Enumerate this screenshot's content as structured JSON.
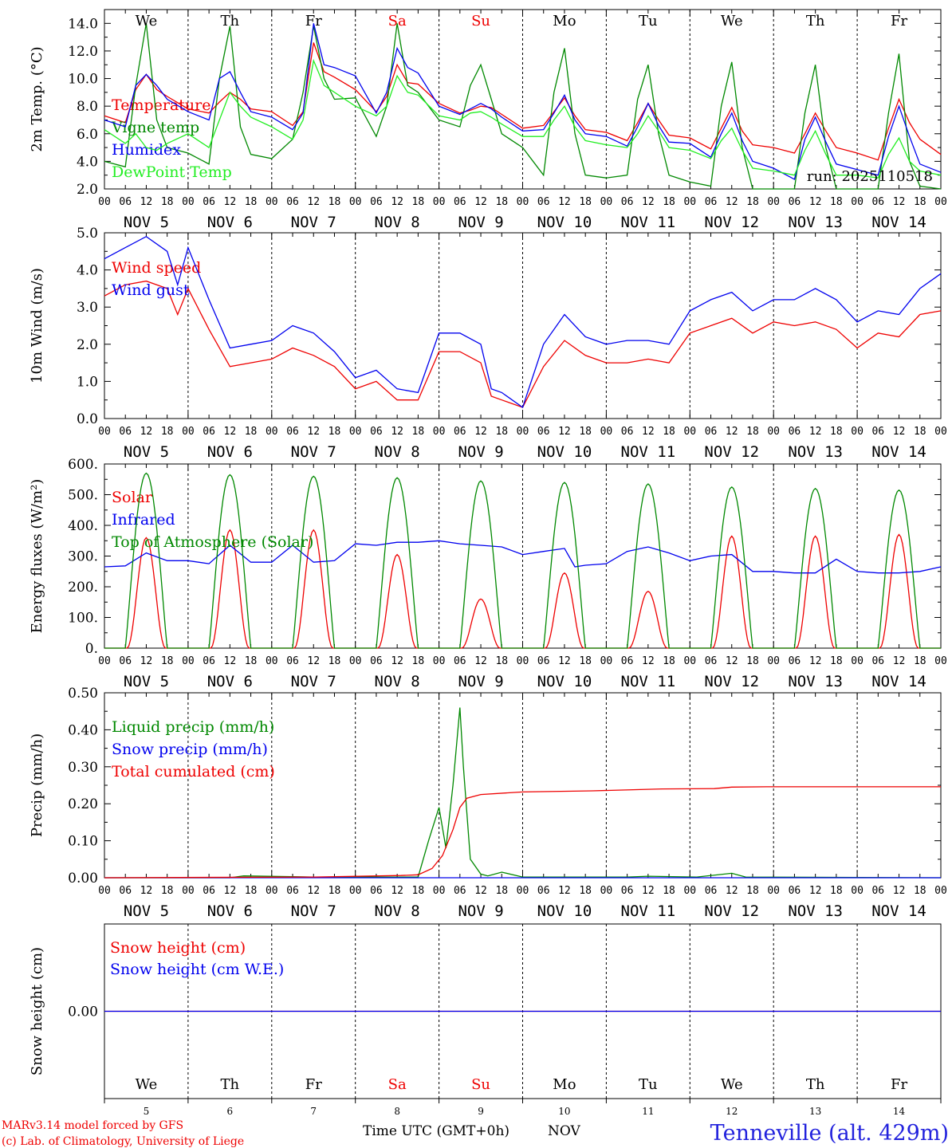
{
  "footer": {
    "model_line": "MARv3.14 model forced by GFS",
    "copyright_line": "(c) Lab. of Climatology, University of Liege",
    "xaxis_title": "Time UTC (GMT+0h)",
    "xaxis_month": "NOV",
    "station": "Tenneville (alt. 429m)"
  },
  "colors": {
    "red": "#ee0000",
    "blue": "#0000ee",
    "green": "#008800",
    "lightgreen": "#22ee22"
  },
  "days": {
    "weekdays": [
      "We",
      "Th",
      "Fr",
      "Sa",
      "Su",
      "Mo",
      "Tu",
      "We",
      "Th",
      "Fr"
    ],
    "weekend_flags": [
      false,
      false,
      false,
      true,
      true,
      false,
      false,
      false,
      false,
      false
    ],
    "dates": [
      "NOV  5",
      "NOV  6",
      "NOV  7",
      "NOV  8",
      "NOV  9",
      "NOV 10",
      "NOV 11",
      "NOV 12",
      "NOV 13",
      "NOV 14"
    ],
    "day_numbers": [
      "5",
      "6",
      "7",
      "8",
      "9",
      "10",
      "11",
      "12",
      "13",
      "14"
    ],
    "hour_ticks": [
      "00",
      "06",
      "12",
      "18"
    ],
    "final_tick": "00"
  },
  "chart_data": [
    {
      "type": "line",
      "id": "temp",
      "ylabel": "2m Temp. (°C)",
      "ylim": [
        2,
        15
      ],
      "yticks": [
        "2.0",
        "4.0",
        "6.0",
        "8.0",
        "10.0",
        "12.0",
        "14.0"
      ],
      "annotation": "run: 2025110518",
      "x_unit": "hours since 2025-11-05 00 UTC",
      "series": [
        {
          "name": "Temperature",
          "color": "red",
          "x": [
            0,
            6,
            9,
            12,
            15,
            18,
            24,
            30,
            33,
            36,
            39,
            42,
            48,
            54,
            57,
            60,
            63,
            66,
            72,
            78,
            81,
            84,
            87,
            90,
            96,
            102,
            105,
            108,
            111,
            114,
            120,
            126,
            129,
            132,
            135,
            138,
            144,
            150,
            153,
            156,
            159,
            162,
            168,
            174,
            177,
            180,
            183,
            186,
            192,
            198,
            201,
            204,
            207,
            210,
            216,
            222,
            225,
            228,
            231,
            234,
            240
          ],
          "values": [
            7.3,
            6.8,
            9.2,
            10.3,
            9.2,
            8.7,
            7.8,
            7.5,
            8.3,
            9.0,
            8.5,
            7.8,
            7.6,
            6.6,
            7.6,
            12.6,
            10.5,
            10.1,
            9.2,
            7.6,
            8.7,
            11.0,
            9.7,
            9.6,
            8.2,
            7.5,
            7.7,
            8.0,
            7.9,
            7.4,
            6.4,
            6.6,
            7.6,
            8.6,
            7.3,
            6.3,
            6.1,
            5.5,
            6.8,
            8.2,
            7.0,
            5.9,
            5.7,
            4.9,
            6.4,
            7.9,
            6.2,
            5.2,
            5.0,
            4.6,
            6.0,
            7.5,
            6.2,
            5.0,
            4.6,
            4.1,
            6.4,
            8.5,
            6.8,
            5.6,
            4.5
          ]
        },
        {
          "name": "Vigne temp",
          "color": "green",
          "x": [
            0,
            6,
            9,
            12,
            15,
            18,
            24,
            30,
            33,
            36,
            39,
            42,
            48,
            54,
            57,
            60,
            63,
            66,
            72,
            78,
            81,
            84,
            87,
            90,
            96,
            102,
            105,
            108,
            111,
            114,
            120,
            126,
            129,
            132,
            135,
            138,
            144,
            150,
            153,
            156,
            159,
            162,
            168,
            174,
            177,
            180,
            183,
            186,
            192,
            198,
            201,
            204,
            207,
            210,
            216,
            222,
            225,
            228,
            231,
            234,
            240
          ],
          "values": [
            4.0,
            3.6,
            9.5,
            14.0,
            7.0,
            5.0,
            4.6,
            3.8,
            10.0,
            13.8,
            6.5,
            4.5,
            4.2,
            5.6,
            9.0,
            13.8,
            10.0,
            8.5,
            8.6,
            5.8,
            8.0,
            14.0,
            9.5,
            9.0,
            7.0,
            6.5,
            9.5,
            11.0,
            8.5,
            6.0,
            5.0,
            3.0,
            9.0,
            12.2,
            6.0,
            3.0,
            2.8,
            3.0,
            8.5,
            11.0,
            6.0,
            3.0,
            2.5,
            2.2,
            8.0,
            11.2,
            5.0,
            1.8,
            1.8,
            2.0,
            7.5,
            11.0,
            5.0,
            2.0,
            1.8,
            1.8,
            7.5,
            11.8,
            4.0,
            2.2,
            2.0
          ]
        },
        {
          "name": "Humidex",
          "color": "blue",
          "x": [
            0,
            6,
            9,
            12,
            15,
            18,
            24,
            30,
            33,
            36,
            39,
            42,
            48,
            54,
            57,
            60,
            63,
            66,
            72,
            78,
            81,
            84,
            87,
            90,
            96,
            102,
            105,
            108,
            111,
            114,
            120,
            126,
            129,
            132,
            135,
            138,
            144,
            150,
            153,
            156,
            159,
            162,
            168,
            174,
            177,
            180,
            183,
            186,
            192,
            198,
            201,
            204,
            207,
            210,
            216,
            222,
            225,
            228,
            231,
            234,
            240
          ],
          "values": [
            7.0,
            6.5,
            9.5,
            10.3,
            9.5,
            8.5,
            7.6,
            7.0,
            10.0,
            10.5,
            9.0,
            7.6,
            7.2,
            6.3,
            7.5,
            14.0,
            11.0,
            10.8,
            10.2,
            7.5,
            9.0,
            12.2,
            10.8,
            10.4,
            8.0,
            7.4,
            7.8,
            8.2,
            7.8,
            7.2,
            6.2,
            6.3,
            7.5,
            8.8,
            7.0,
            6.0,
            5.8,
            5.1,
            6.5,
            8.2,
            6.6,
            5.4,
            5.3,
            4.3,
            6.0,
            7.5,
            5.5,
            4.0,
            3.5,
            2.7,
            5.6,
            7.2,
            5.4,
            3.8,
            3.4,
            3.0,
            5.8,
            8.0,
            5.8,
            3.8,
            3.2
          ]
        },
        {
          "name": "DewPoint Temp",
          "color": "lightgreen",
          "x": [
            0,
            6,
            9,
            12,
            15,
            18,
            24,
            30,
            33,
            36,
            39,
            42,
            48,
            54,
            57,
            60,
            63,
            66,
            72,
            78,
            81,
            84,
            87,
            90,
            96,
            102,
            105,
            108,
            111,
            114,
            120,
            126,
            129,
            132,
            135,
            138,
            144,
            150,
            153,
            156,
            159,
            162,
            168,
            174,
            177,
            180,
            183,
            186,
            192,
            198,
            201,
            204,
            207,
            210,
            216,
            222,
            225,
            228,
            231,
            234,
            240
          ],
          "values": [
            6.3,
            5.3,
            6.0,
            5.0,
            4.8,
            5.3,
            6.0,
            5.0,
            7.0,
            9.0,
            8.0,
            7.2,
            6.5,
            5.6,
            7.0,
            11.3,
            9.5,
            9.0,
            8.0,
            7.3,
            8.0,
            10.2,
            9.0,
            8.8,
            7.3,
            7.0,
            7.5,
            7.6,
            7.2,
            6.7,
            5.8,
            5.8,
            7.0,
            8.0,
            6.5,
            5.5,
            5.2,
            5.0,
            6.0,
            7.3,
            6.2,
            5.0,
            4.8,
            4.2,
            5.5,
            6.4,
            4.8,
            3.5,
            3.3,
            3.0,
            4.8,
            6.2,
            4.5,
            3.0,
            3.0,
            2.8,
            4.5,
            5.7,
            4.0,
            3.3,
            3.0
          ]
        }
      ]
    },
    {
      "type": "line",
      "id": "wind",
      "ylabel": "10m Wind (m/s)",
      "ylim": [
        0,
        5
      ],
      "yticks": [
        "0.0",
        "1.0",
        "2.0",
        "3.0",
        "4.0",
        "5.0"
      ],
      "x_unit": "hours since 2025-11-05 00 UTC",
      "series": [
        {
          "name": "Wind speed",
          "color": "red",
          "x": [
            0,
            6,
            12,
            18,
            21,
            24,
            30,
            36,
            42,
            48,
            54,
            60,
            66,
            72,
            78,
            84,
            90,
            96,
            102,
            108,
            111,
            114,
            120,
            126,
            132,
            138,
            144,
            150,
            156,
            162,
            168,
            174,
            180,
            186,
            192,
            198,
            204,
            210,
            216,
            222,
            228,
            234,
            240
          ],
          "values": [
            3.3,
            3.6,
            3.7,
            3.5,
            2.8,
            3.5,
            2.4,
            1.4,
            1.5,
            1.6,
            1.9,
            1.7,
            1.4,
            0.8,
            1.0,
            0.5,
            0.5,
            1.8,
            1.8,
            1.5,
            0.6,
            0.5,
            0.3,
            1.4,
            2.1,
            1.7,
            1.5,
            1.5,
            1.6,
            1.5,
            2.3,
            2.5,
            2.7,
            2.3,
            2.6,
            2.5,
            2.6,
            2.4,
            1.9,
            2.3,
            2.2,
            2.8,
            2.9
          ]
        },
        {
          "name": "Wind gust",
          "color": "blue",
          "x": [
            0,
            6,
            12,
            18,
            21,
            24,
            30,
            36,
            42,
            48,
            54,
            60,
            66,
            72,
            78,
            84,
            90,
            96,
            102,
            108,
            111,
            114,
            120,
            126,
            132,
            138,
            144,
            150,
            156,
            162,
            168,
            174,
            180,
            186,
            192,
            198,
            204,
            210,
            216,
            222,
            228,
            234,
            240
          ],
          "values": [
            4.3,
            4.6,
            4.9,
            4.5,
            3.6,
            4.6,
            3.2,
            1.9,
            2.0,
            2.1,
            2.5,
            2.3,
            1.8,
            1.1,
            1.3,
            0.8,
            0.7,
            2.3,
            2.3,
            2.0,
            0.8,
            0.7,
            0.3,
            2.0,
            2.8,
            2.2,
            2.0,
            2.1,
            2.1,
            2.0,
            2.9,
            3.2,
            3.4,
            2.9,
            3.2,
            3.2,
            3.5,
            3.2,
            2.6,
            2.9,
            2.8,
            3.5,
            3.9
          ]
        }
      ]
    },
    {
      "type": "line",
      "id": "energy",
      "ylabel": "Energy fluxes (W/m²)",
      "ylim": [
        0,
        600
      ],
      "yticks": [
        "0.",
        "100.",
        "200.",
        "300.",
        "400.",
        "500.",
        "600."
      ],
      "x_unit": "hours since 2025-11-05 00 UTC",
      "series": [
        {
          "name": "Solar",
          "color": "red",
          "peaks_hour": [
            12,
            36,
            60,
            84,
            108,
            132,
            156,
            180,
            204,
            228
          ],
          "peaks_value": [
            360,
            385,
            385,
            305,
            160,
            245,
            185,
            365,
            365,
            370
          ]
        },
        {
          "name": "Infrared",
          "color": "blue",
          "x": [
            0,
            6,
            12,
            18,
            24,
            30,
            36,
            42,
            48,
            54,
            60,
            66,
            72,
            78,
            84,
            90,
            96,
            102,
            108,
            114,
            120,
            126,
            132,
            135,
            138,
            144,
            150,
            156,
            162,
            168,
            174,
            180,
            186,
            192,
            198,
            204,
            210,
            216,
            222,
            228,
            234,
            240
          ],
          "values": [
            265,
            268,
            310,
            285,
            285,
            275,
            335,
            280,
            280,
            335,
            280,
            285,
            340,
            335,
            345,
            345,
            350,
            340,
            335,
            330,
            305,
            315,
            325,
            265,
            270,
            275,
            315,
            330,
            310,
            285,
            300,
            305,
            250,
            250,
            245,
            245,
            290,
            250,
            245,
            245,
            250,
            265
          ]
        },
        {
          "name": "Top of Atmosphere (Solar)",
          "color": "green",
          "peaks_hour": [
            12,
            36,
            60,
            84,
            108,
            132,
            156,
            180,
            204,
            228
          ],
          "peaks_value": [
            570,
            565,
            560,
            555,
            545,
            540,
            535,
            525,
            520,
            515
          ]
        }
      ]
    },
    {
      "type": "line",
      "id": "precip",
      "ylabel": "Precip (mm/h)",
      "ylim": [
        0,
        0.5
      ],
      "yticks": [
        "0.00",
        "0.10",
        "0.20",
        "0.30",
        "0.40",
        "0.50"
      ],
      "x_unit": "hours since 2025-11-05 00 UTC",
      "series": [
        {
          "name": "Liquid precip (mm/h)",
          "color": "green",
          "x": [
            0,
            36,
            40,
            60,
            90,
            93,
            96,
            98,
            100,
            102,
            103,
            105,
            108,
            110,
            114,
            120,
            150,
            156,
            170,
            180,
            184,
            240
          ],
          "values": [
            0,
            0,
            0.005,
            0.002,
            0.002,
            0.1,
            0.19,
            0.08,
            0.25,
            0.46,
            0.3,
            0.05,
            0.01,
            0.005,
            0.015,
            0.002,
            0.002,
            0.004,
            0.002,
            0.012,
            0.002,
            0
          ]
        },
        {
          "name": "Snow precip (mm/h)",
          "color": "blue",
          "x": [
            0,
            240
          ],
          "values": [
            0,
            0
          ]
        },
        {
          "name": "Total cumulated (cm)",
          "color": "red",
          "x": [
            0,
            60,
            85,
            90,
            94,
            97,
            100,
            102,
            104,
            108,
            120,
            140,
            160,
            175,
            180,
            190,
            240
          ],
          "values": [
            0,
            0.002,
            0.006,
            0.008,
            0.025,
            0.06,
            0.13,
            0.19,
            0.215,
            0.225,
            0.232,
            0.235,
            0.24,
            0.241,
            0.245,
            0.246,
            0.246
          ]
        }
      ]
    },
    {
      "type": "line",
      "id": "snow",
      "ylabel": "Snow height (cm)",
      "ylim": [
        -1,
        1
      ],
      "yticks": [
        "0.00"
      ],
      "x_unit": "hours since 2025-11-05 00 UTC",
      "series": [
        {
          "name": "Snow height (cm)",
          "color": "red",
          "x": [
            0,
            240
          ],
          "values": [
            0,
            0
          ]
        },
        {
          "name": "Snow height (cm W.E.)",
          "color": "blue",
          "x": [
            0,
            240
          ],
          "values": [
            0,
            0
          ]
        }
      ]
    }
  ]
}
